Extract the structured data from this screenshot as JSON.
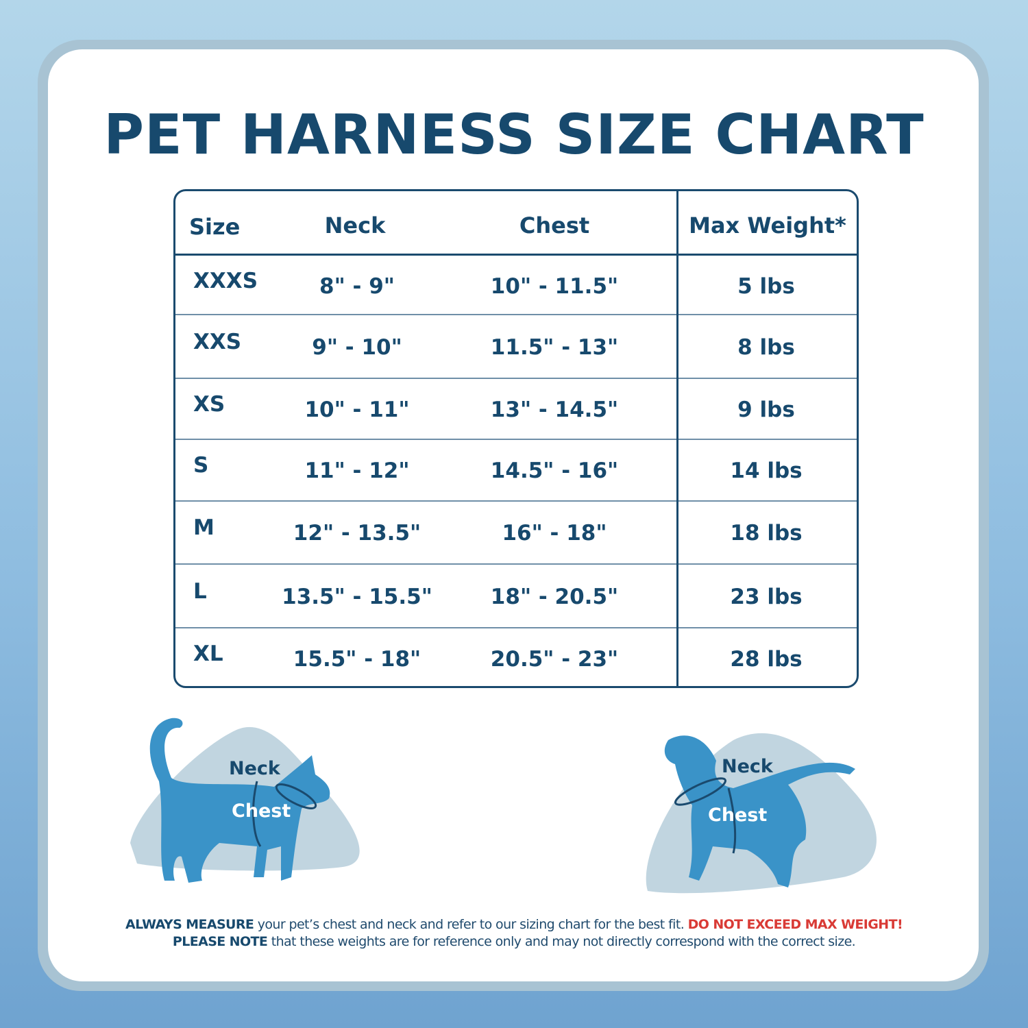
{
  "title": "PET HARNESS SIZE CHART",
  "table": {
    "headers": [
      "Size",
      "Neck",
      "Chest",
      "Max Weight*"
    ],
    "rows": [
      [
        "XXXS",
        "8\" - 9\"",
        "10\" - 11.5\"",
        "5 lbs"
      ],
      [
        "XXS",
        "9\" - 10\"",
        "11.5\" - 13\"",
        "8 lbs"
      ],
      [
        "XS",
        "10\" - 11\"",
        "13\" - 14.5\"",
        "9 lbs"
      ],
      [
        "S",
        "11\" - 12\"",
        "14.5\" - 16\"",
        "14 lbs"
      ],
      [
        "M",
        "12\" - 13.5\"",
        "16\" - 18\"",
        "18 lbs"
      ],
      [
        "L",
        "13.5\" - 15.5\"",
        "18\" - 20.5\"",
        "23 lbs"
      ],
      [
        "XL",
        "15.5\" - 18\"",
        "20.5\" - 23\"",
        "28 lbs"
      ]
    ]
  },
  "cat_diagram": {
    "neck_label": "Neck",
    "chest_label": "Chest"
  },
  "dog_diagram": {
    "neck_label": "Neck",
    "chest_label": "Chest"
  },
  "footer": {
    "line1_bold": "ALWAYS MEASURE",
    "line1_text": " your pet’s chest and neck and refer to our sizing chart for the best fit. ",
    "line1_warning": "DO NOT EXCEED MAX WEIGHT!",
    "line2_bold": "PLEASE NOTE",
    "line2_text": " that these weights are for reference only and may not directly correspond with the correct size."
  },
  "colors": {
    "navy": "#17496d",
    "pet_blue": "#3a93c8",
    "blob": "#c1d5e0",
    "warning_red": "#d93a35"
  }
}
